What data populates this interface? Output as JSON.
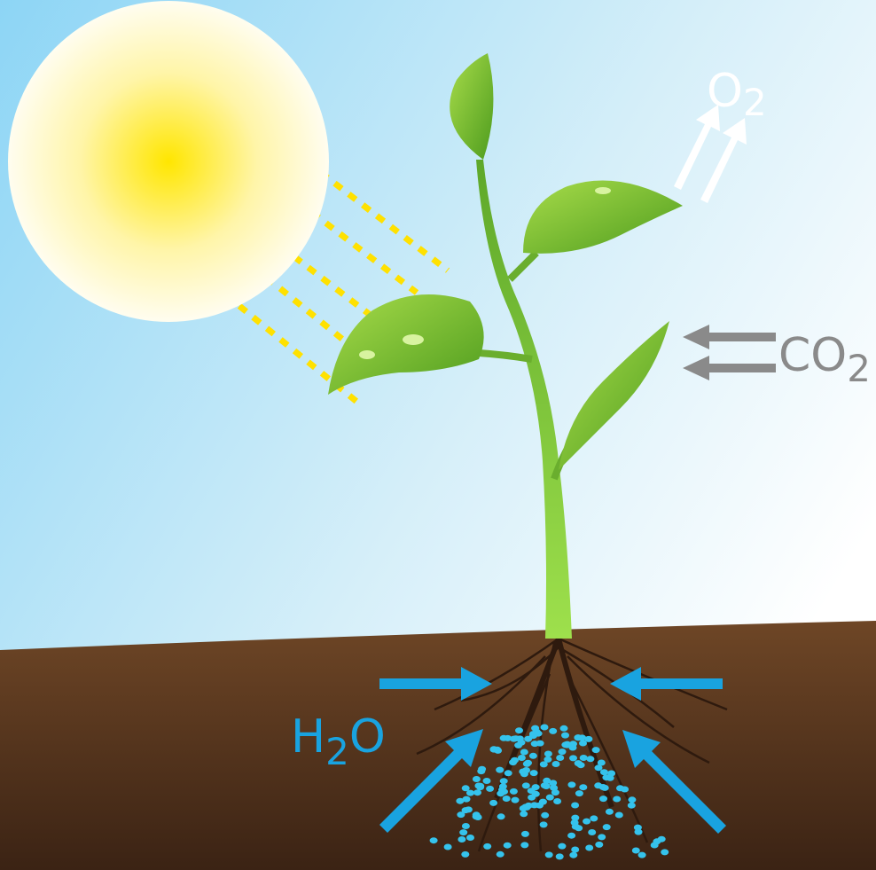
{
  "labels": {
    "oxygen": [
      "O",
      "2"
    ],
    "carbon_dioxide": [
      "CO",
      "2"
    ],
    "water": [
      "H",
      "2",
      "O"
    ]
  }
}
